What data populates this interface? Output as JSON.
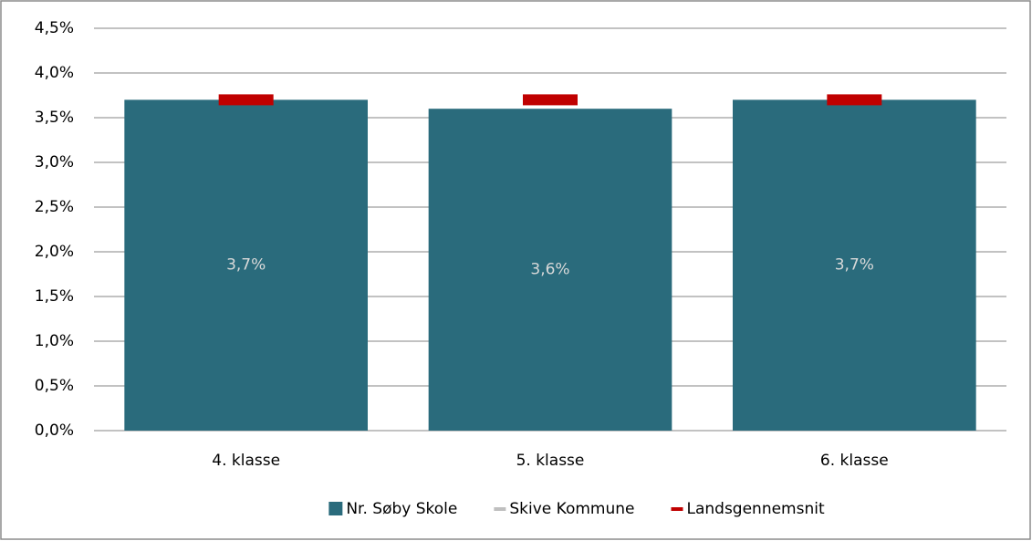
{
  "chart_data": {
    "type": "bar",
    "categories": [
      "4. klasse",
      "5. klasse",
      "6. klasse"
    ],
    "series": [
      {
        "name": "Nr. Søby Skole",
        "type": "bar",
        "color": "#2a6b7c",
        "values": [
          3.7,
          3.6,
          3.7
        ],
        "value_labels": [
          "3,7%",
          "3,6%",
          "3,7%"
        ]
      },
      {
        "name": "Skive Kommune",
        "type": "line",
        "color": "#bfbfbf",
        "values": [
          null,
          null,
          null
        ]
      },
      {
        "name": "Landsgennemsnit",
        "type": "line",
        "color": "#c00000",
        "values": [
          3.7,
          3.7,
          3.7
        ]
      }
    ],
    "ylim": [
      0,
      4.5
    ],
    "yticks": [
      {
        "value": 0,
        "label": "0,0%"
      },
      {
        "value": 0.5,
        "label": "0,5%"
      },
      {
        "value": 1,
        "label": "1,0%"
      },
      {
        "value": 1.5,
        "label": "1,5%"
      },
      {
        "value": 2,
        "label": "2,0%"
      },
      {
        "value": 2.5,
        "label": "2,5%"
      },
      {
        "value": 3,
        "label": "3,0%"
      },
      {
        "value": 3.5,
        "label": "3,5%"
      },
      {
        "value": 4,
        "label": "4,0%"
      },
      {
        "value": 4.5,
        "label": "4,5%"
      }
    ],
    "grid": true,
    "legend": "bottom"
  }
}
